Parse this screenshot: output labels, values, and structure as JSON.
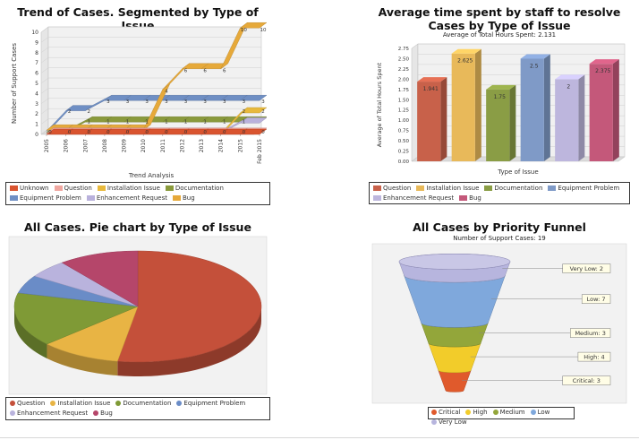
{
  "chart_data": [
    {
      "type": "line",
      "title": "Trend of Cases. Segmented by Type of Issue",
      "xlabel": "Trend Analysis",
      "ylabel": "Number of Support Cases",
      "categories": [
        "2005",
        "2006",
        "2007",
        "2008",
        "2009",
        "2010",
        "2011",
        "2012",
        "2013",
        "2014",
        "2015",
        "Feb 2015"
      ],
      "ylim": [
        0,
        10
      ],
      "yticks": [
        "0",
        "1",
        "2",
        "3",
        "4",
        "5",
        "6",
        "7",
        "8",
        "9",
        "10"
      ],
      "grid": true,
      "legend_position": "bottom",
      "series": [
        {
          "name": "Unknown",
          "color": "#d9542f",
          "values": [
            0,
            0,
            0,
            0,
            0,
            0,
            0,
            0,
            0,
            0,
            0,
            0
          ]
        },
        {
          "name": "Question",
          "color": "#f0a7a0",
          "values": [
            0,
            0,
            0,
            0,
            0,
            0,
            0,
            0,
            0,
            0,
            0,
            0
          ]
        },
        {
          "name": "Installation Issue",
          "color": "#e8b93c",
          "values": [
            0,
            0,
            0,
            0,
            0,
            0,
            0,
            0,
            0,
            0,
            2,
            2
          ]
        },
        {
          "name": "Documentation",
          "color": "#8a9a3c",
          "values": [
            0,
            0,
            1,
            1,
            1,
            1,
            1,
            1,
            1,
            1,
            1,
            1
          ]
        },
        {
          "name": "Equipment Problem",
          "color": "#6f8fc4",
          "values": [
            0,
            2,
            2,
            3,
            3,
            3,
            3,
            3,
            3,
            3,
            3,
            3
          ]
        },
        {
          "name": "Enhancement Request",
          "color": "#b9b1dc",
          "values": [
            0,
            0,
            0,
            0,
            0,
            0,
            0,
            0,
            0,
            0,
            1,
            1
          ]
        },
        {
          "name": "Bug",
          "color": "#e6a93a",
          "values": [
            0,
            0,
            0,
            0,
            0,
            0,
            4,
            6,
            6,
            6,
            10,
            10
          ]
        }
      ],
      "data_labels": [
        {
          "series": "Bug",
          "index": 6,
          "text": "4"
        },
        {
          "series": "Bug",
          "index": 7,
          "text": "6"
        },
        {
          "series": "Bug",
          "index": 8,
          "text": "6"
        },
        {
          "series": "Bug",
          "index": 9,
          "text": "6"
        },
        {
          "series": "Bug",
          "index": 10,
          "text": "10"
        },
        {
          "series": "Bug",
          "index": 11,
          "text": "10"
        },
        {
          "series": "Equipment Problem",
          "index": 1,
          "text": "2"
        },
        {
          "series": "Equipment Problem",
          "index": 2,
          "text": "2"
        },
        {
          "series": "Equipment Problem",
          "index": 3,
          "text": "3"
        },
        {
          "series": "Equipment Problem",
          "index": 4,
          "text": "3"
        },
        {
          "series": "Equipment Problem",
          "index": 5,
          "text": "3"
        },
        {
          "series": "Equipment Problem",
          "index": 6,
          "text": "3"
        },
        {
          "series": "Equipment Problem",
          "index": 7,
          "text": "3"
        },
        {
          "series": "Equipment Problem",
          "index": 8,
          "text": "3"
        },
        {
          "series": "Equipment Problem",
          "index": 9,
          "text": "3"
        },
        {
          "series": "Equipment Problem",
          "index": 10,
          "text": "3"
        },
        {
          "series": "Equipment Problem",
          "index": 11,
          "text": "3"
        },
        {
          "series": "Documentation",
          "index": 2,
          "text": "1"
        },
        {
          "series": "Documentation",
          "index": 3,
          "text": "1"
        },
        {
          "series": "Documentation",
          "index": 4,
          "text": "1"
        },
        {
          "series": "Documentation",
          "index": 5,
          "text": "1"
        },
        {
          "series": "Documentation",
          "index": 6,
          "text": "1"
        },
        {
          "series": "Documentation",
          "index": 7,
          "text": "1"
        },
        {
          "series": "Documentation",
          "index": 8,
          "text": "1"
        },
        {
          "series": "Documentation",
          "index": 9,
          "text": "1"
        },
        {
          "series": "Installation Issue",
          "index": 10,
          "text": "2"
        },
        {
          "series": "Installation Issue",
          "index": 11,
          "text": "2"
        },
        {
          "series": "Enhancement Request",
          "index": 10,
          "text": "1"
        },
        {
          "series": "Unknown",
          "index": 0,
          "text": "0"
        },
        {
          "series": "Unknown",
          "index": 1,
          "text": "0"
        },
        {
          "series": "Unknown",
          "index": 2,
          "text": "0"
        },
        {
          "series": "Unknown",
          "index": 3,
          "text": "0"
        },
        {
          "series": "Unknown",
          "index": 4,
          "text": "0"
        },
        {
          "series": "Unknown",
          "index": 5,
          "text": "0"
        },
        {
          "series": "Unknown",
          "index": 6,
          "text": "0"
        },
        {
          "series": "Unknown",
          "index": 7,
          "text": "0"
        },
        {
          "series": "Unknown",
          "index": 8,
          "text": "0"
        },
        {
          "series": "Unknown",
          "index": 9,
          "text": "0"
        },
        {
          "series": "Unknown",
          "index": 10,
          "text": "0"
        },
        {
          "series": "Unknown",
          "index": 11,
          "text": "0"
        }
      ]
    },
    {
      "type": "bar",
      "title": "Average time spent by staff to resolve Cases by Type of Issue",
      "subtitle": "Average of Total Hours Spent: 2.131",
      "xlabel": "Type of Issue",
      "ylabel": "Average of Total Hours Spent",
      "ylim": [
        0,
        2.75
      ],
      "yticks": [
        "0.00",
        "0.25",
        "0.50",
        "0.75",
        "1.00",
        "1.25",
        "1.50",
        "1.75",
        "2.00",
        "2.25",
        "2.50",
        "2.75"
      ],
      "grid": true,
      "legend_position": "bottom",
      "categories": [
        "Question",
        "Installation Issue",
        "Documentation",
        "Equipment Problem",
        "Enhancement Request",
        "Bug"
      ],
      "values": [
        1.941,
        2.625,
        1.75,
        2.5,
        2,
        2.375
      ],
      "value_labels": [
        "1.941",
        "2.625",
        "1.75",
        "2.5",
        "2",
        "2.375"
      ],
      "colors": [
        "#c8614a",
        "#e8b95a",
        "#8a9d45",
        "#7f9ac7",
        "#bdb6dd",
        "#c4587a"
      ]
    },
    {
      "type": "pie",
      "title": "All Cases. Pie chart by Type of Issue",
      "legend_position": "bottom",
      "categories": [
        "Question",
        "Installation Issue",
        "Documentation",
        "Equipment Problem",
        "Enhancement Request",
        "Bug"
      ],
      "values": [
        10,
        2,
        3,
        1,
        1,
        2
      ],
      "colors": [
        "#c4503a",
        "#e8b444",
        "#7f9a36",
        "#6a8cc7",
        "#b9b3dd",
        "#b5466a"
      ]
    },
    {
      "type": "funnel",
      "title": "All Cases by Priority Funnel",
      "subtitle": "Number of Support Cases: 19",
      "legend_position": "bottom",
      "categories": [
        "Very Low",
        "Low",
        "Medium",
        "High",
        "Critical"
      ],
      "values": [
        2,
        7,
        3,
        4,
        3
      ],
      "value_labels": [
        "Very Low: 2",
        "Low: 7",
        "Medium: 3",
        "High: 4",
        "Critical: 3"
      ],
      "legend_order": [
        "Critical",
        "High",
        "Medium",
        "Low",
        "Very Low"
      ],
      "colors": {
        "Critical": "#e05a2c",
        "High": "#f2cc2a",
        "Medium": "#93a63a",
        "Low": "#7fa8dc",
        "Very Low": "#b7b5de"
      }
    }
  ]
}
